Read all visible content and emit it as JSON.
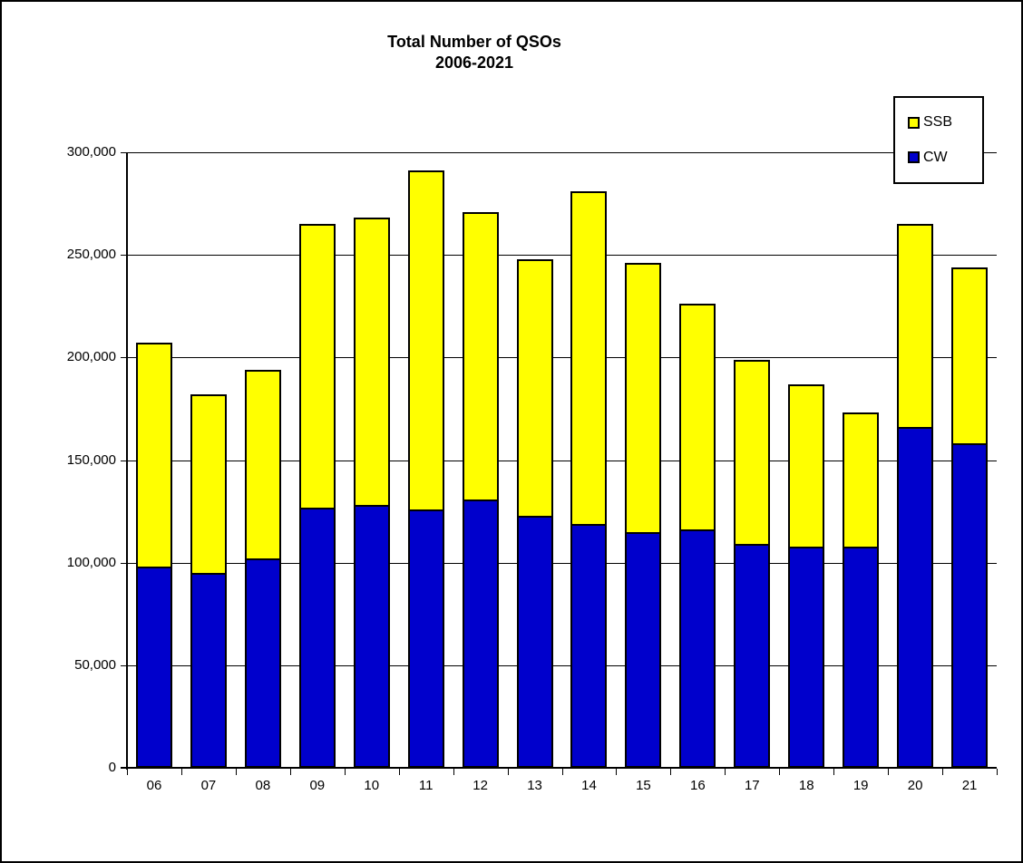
{
  "chart_data": {
    "type": "bar",
    "stacked": true,
    "title": "Total Number of QSOs",
    "subtitle": "2006-2021",
    "categories": [
      "06",
      "07",
      "08",
      "09",
      "10",
      "11",
      "12",
      "13",
      "14",
      "15",
      "16",
      "17",
      "18",
      "19",
      "20",
      "21"
    ],
    "series": [
      {
        "name": "CW",
        "color": "#0000CC",
        "stack_position": "bottom",
        "values": [
          98000,
          95000,
          102000,
          127000,
          128000,
          126000,
          131000,
          123000,
          119000,
          115000,
          116000,
          109000,
          108000,
          108000,
          166000,
          158000
        ]
      },
      {
        "name": "SSB",
        "color": "#FFFF00",
        "stack_position": "top",
        "values": [
          109000,
          87000,
          92000,
          138000,
          140000,
          165000,
          140000,
          125000,
          162000,
          131000,
          110000,
          90000,
          79000,
          65000,
          99000,
          86000
        ]
      }
    ],
    "stack_totals": [
      207000,
      182000,
      194000,
      265000,
      268000,
      291000,
      271000,
      248000,
      281000,
      246000,
      226000,
      199000,
      187000,
      173000,
      265000,
      244000
    ],
    "xlabel": "",
    "ylabel": "",
    "ylim": [
      0,
      300000
    ],
    "ytick_interval": 50000,
    "ytick_labels": [
      "0",
      "50,000",
      "100,000",
      "150,000",
      "200,000",
      "250,000",
      "300,000"
    ],
    "grid": true,
    "grid_color": "#000000",
    "legend_position": "top-right"
  },
  "legend": {
    "items": [
      {
        "label": "SSB",
        "color": "#FFFF00"
      },
      {
        "label": "CW",
        "color": "#0000CC"
      }
    ]
  }
}
